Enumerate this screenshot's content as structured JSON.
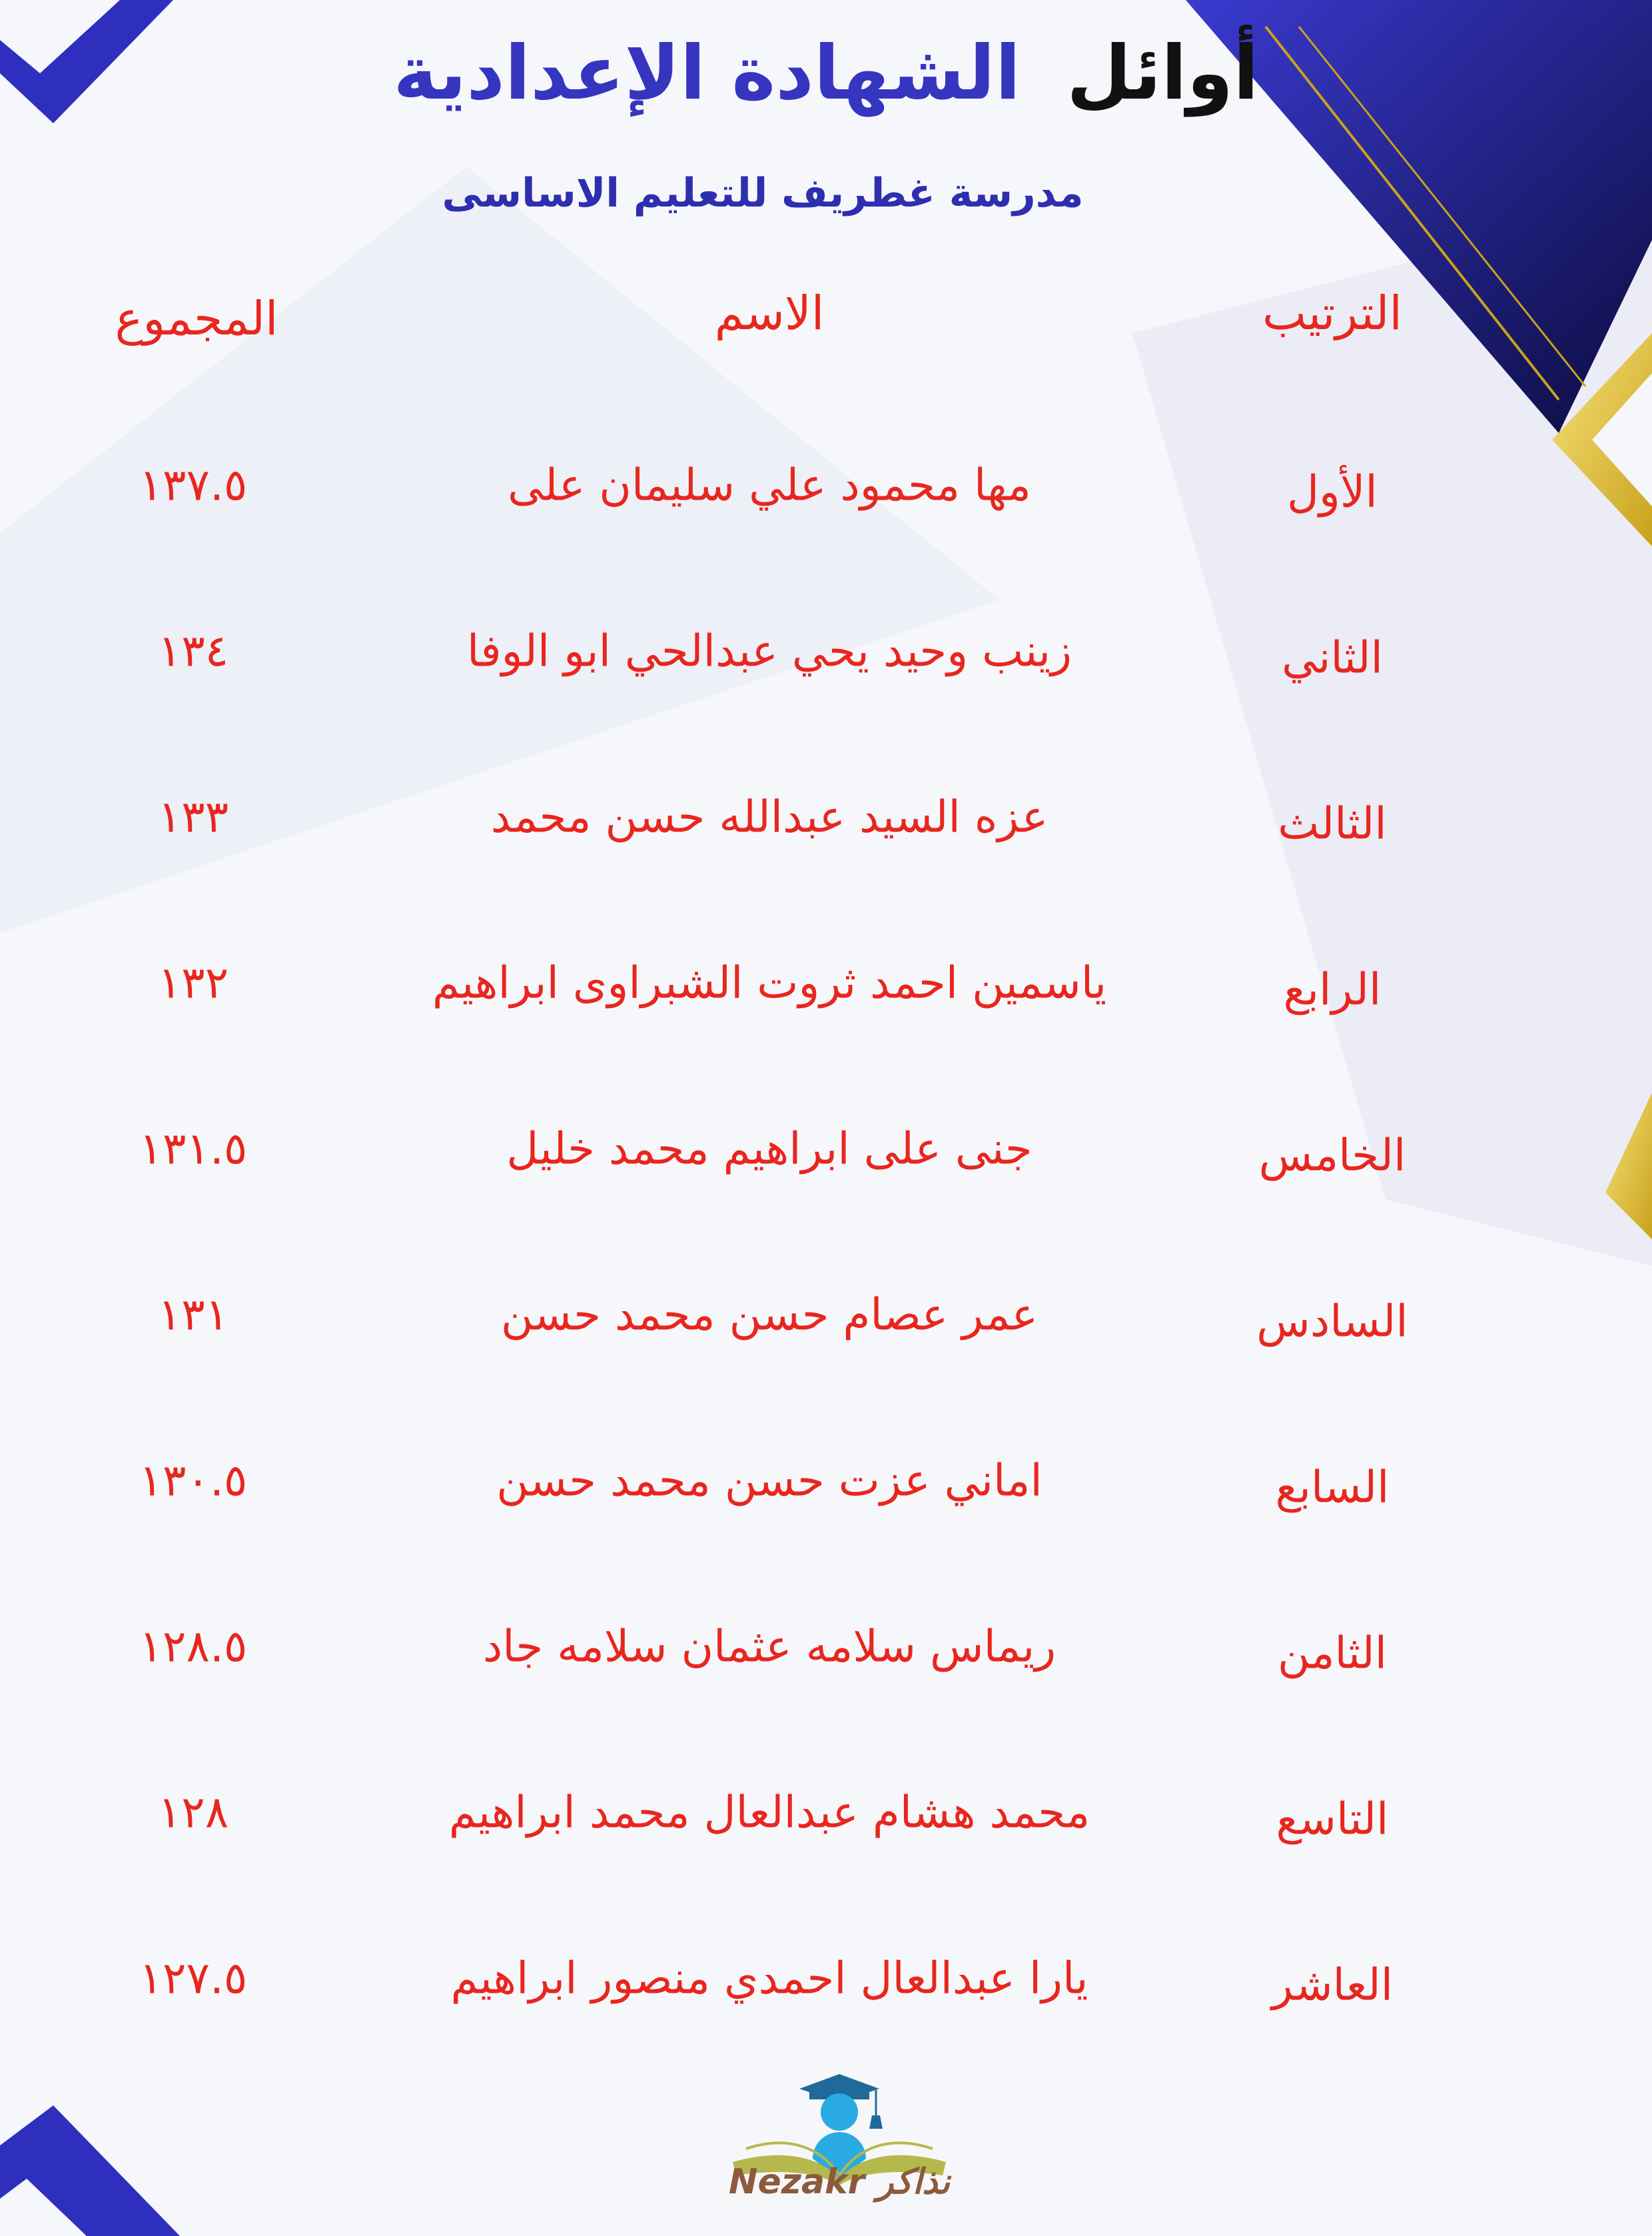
{
  "title": {
    "part1": "أوائل",
    "part2": "الشهادة الإعدادية"
  },
  "subtitle": "مدرسة غطريف للتعليم الاساسى",
  "table": {
    "headers": {
      "rank": "الترتيب",
      "name": "الاسم",
      "total": "المجموع"
    },
    "rows": [
      {
        "rank": "الأول",
        "name": "مها محمود علي سليمان على",
        "total": "١٣٧.٥"
      },
      {
        "rank": "الثاني",
        "name": "زينب وحيد يحي عبدالحي ابو الوفا",
        "total": "١٣٤"
      },
      {
        "rank": "الثالث",
        "name": "عزه السيد عبدالله حسن محمد",
        "total": "١٣٣"
      },
      {
        "rank": "الرابع",
        "name": "ياسمين احمد ثروت الشبراوى ابراهيم",
        "total": "١٣٢"
      },
      {
        "rank": "الخامس",
        "name": "جنى على ابراهيم محمد خليل",
        "total": "١٣١.٥"
      },
      {
        "rank": "السادس",
        "name": "عمر عصام حسن محمد حسن",
        "total": "١٣١"
      },
      {
        "rank": "السابع",
        "name": "اماني عزت حسن محمد حسن",
        "total": "١٣٠.٥"
      },
      {
        "rank": "الثامن",
        "name": "ريماس سلامه عثمان سلامه جاد",
        "total": "١٢٨.٥"
      },
      {
        "rank": "التاسع",
        "name": "محمد هشام عبدالعال محمد ابراهيم",
        "total": "١٢٨"
      },
      {
        "rank": "العاشر",
        "name": "يارا عبدالعال احمدي منصور ابراهيم",
        "total": "١٢٧.٥"
      }
    ]
  },
  "logo": {
    "text": "Nezakr نذاكر"
  },
  "colors": {
    "text_red": "#e8261e",
    "title_blue": "#3535c0",
    "decor_blue": "#2f2fbf",
    "gold": "#e5c53a"
  }
}
